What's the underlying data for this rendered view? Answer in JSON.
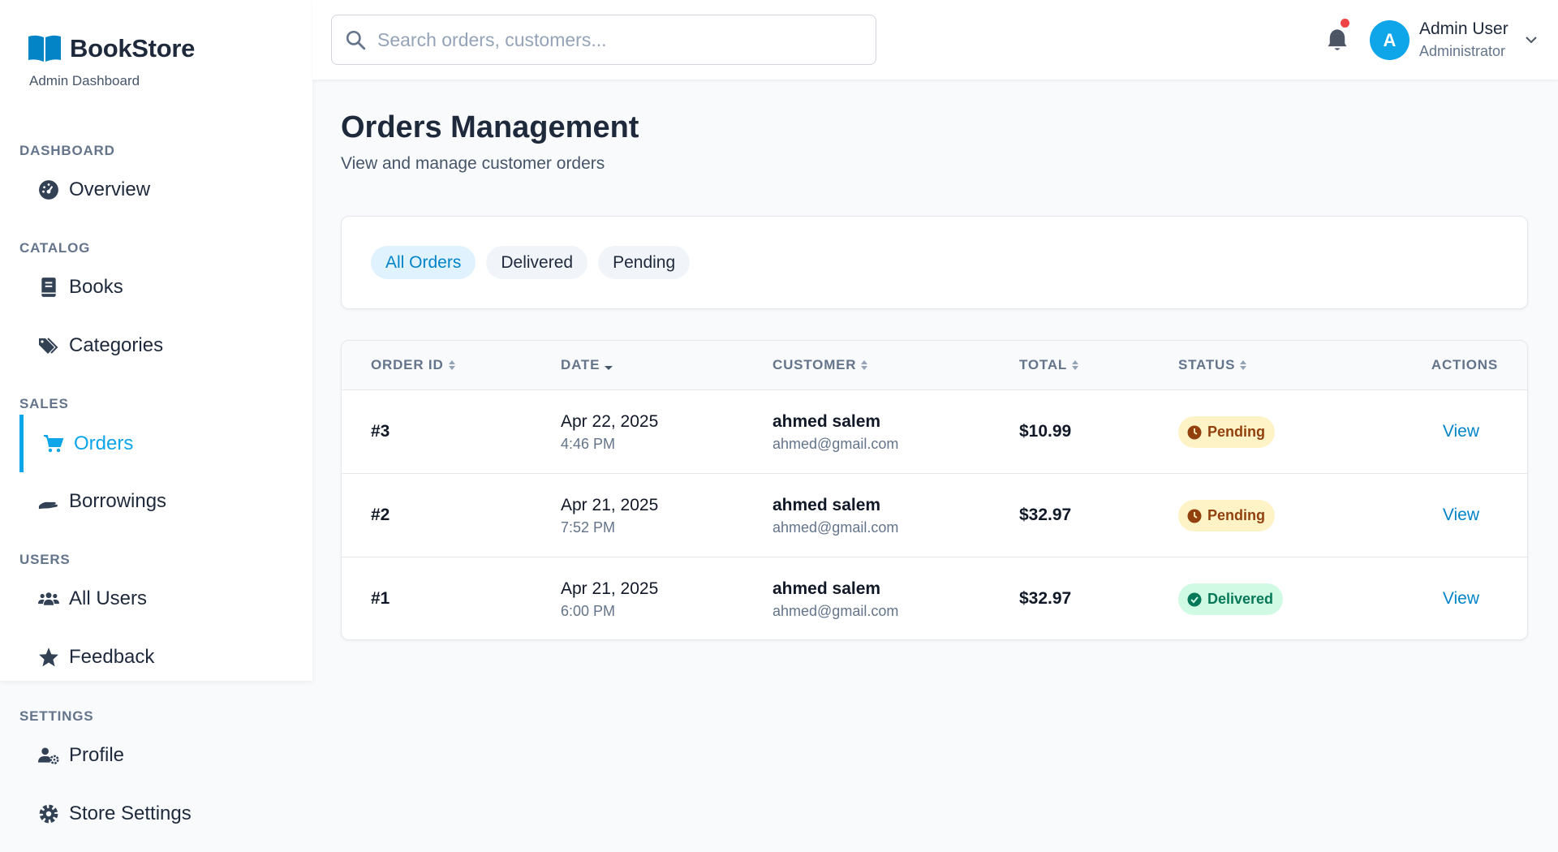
{
  "brand": {
    "name": "BookStore",
    "subtitle": "Admin Dashboard"
  },
  "sidebar": {
    "sections": [
      {
        "label": "Dashboard",
        "items": [
          {
            "label": "Overview",
            "icon": "gauge-icon"
          }
        ]
      },
      {
        "label": "Catalog",
        "items": [
          {
            "label": "Books",
            "icon": "book-icon"
          },
          {
            "label": "Categories",
            "icon": "tags-icon"
          }
        ]
      },
      {
        "label": "Sales",
        "items": [
          {
            "label": "Orders",
            "icon": "cart-icon",
            "active": true
          },
          {
            "label": "Borrowings",
            "icon": "hand-icon"
          }
        ]
      },
      {
        "label": "Users",
        "items": [
          {
            "label": "All Users",
            "icon": "users-icon"
          },
          {
            "label": "Feedback",
            "icon": "star-icon"
          }
        ]
      },
      {
        "label": "Settings",
        "items": [
          {
            "label": "Profile",
            "icon": "user-gear-icon"
          },
          {
            "label": "Store Settings",
            "icon": "gear-icon"
          }
        ]
      }
    ]
  },
  "header": {
    "search_placeholder": "Search orders, customers...",
    "user": {
      "initial": "A",
      "name": "Admin User",
      "role": "Administrator"
    }
  },
  "page": {
    "title": "Orders Management",
    "subtitle": "View and manage customer orders"
  },
  "filters": [
    {
      "label": "All Orders",
      "active": true
    },
    {
      "label": "Delivered"
    },
    {
      "label": "Pending"
    }
  ],
  "table": {
    "columns": [
      "ORDER ID",
      "DATE",
      "CUSTOMER",
      "TOTAL",
      "STATUS",
      "ACTIONS"
    ],
    "rows": [
      {
        "id": "#3",
        "date": "Apr 22, 2025",
        "time": "4:46 PM",
        "customer": "ahmed salem",
        "email": "ahmed@gmail.com",
        "total": "$10.99",
        "status": "Pending",
        "action": "View"
      },
      {
        "id": "#2",
        "date": "Apr 21, 2025",
        "time": "7:52 PM",
        "customer": "ahmed salem",
        "email": "ahmed@gmail.com",
        "total": "$32.97",
        "status": "Pending",
        "action": "View"
      },
      {
        "id": "#1",
        "date": "Apr 21, 2025",
        "time": "6:00 PM",
        "customer": "ahmed salem",
        "email": "ahmed@gmail.com",
        "total": "$32.97",
        "status": "Delivered",
        "action": "View"
      }
    ]
  },
  "colors": {
    "accent": "#0ea5e9",
    "link": "#0284c7",
    "pending_bg": "#fef3c7",
    "pending_fg": "#92400e",
    "delivered_bg": "#d1fae5",
    "delivered_fg": "#047857"
  }
}
